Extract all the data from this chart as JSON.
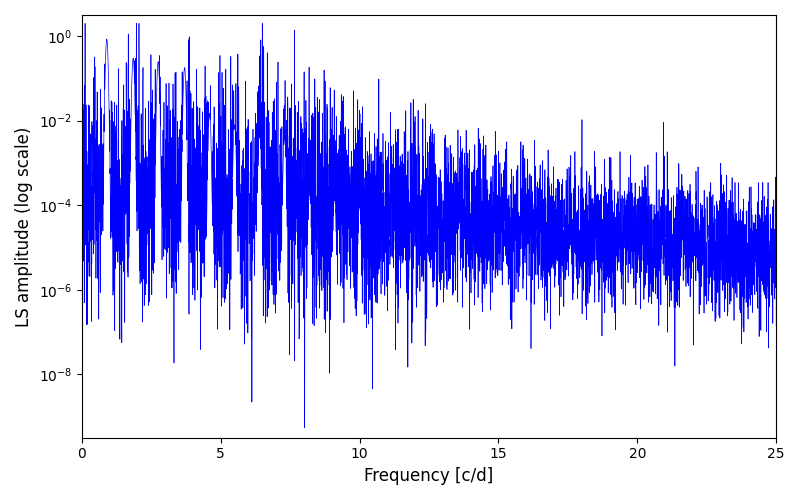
{
  "title": "",
  "xlabel": "Frequency [c/d]",
  "ylabel": "LS amplitude (log scale)",
  "line_color": "blue",
  "line_width": 0.5,
  "xlim": [
    0,
    25
  ],
  "ylim_log": [
    -9.5,
    0.5
  ],
  "freq_min": 0.01,
  "freq_max": 25.0,
  "n_points": 5000,
  "background_color": "#ffffff",
  "figsize": [
    8.0,
    5.0
  ],
  "dpi": 100,
  "seed": 12345,
  "log_base_intercept": -3.5,
  "log_base_slope": -0.065,
  "log_noise_sigma_low": 1.4,
  "log_noise_sigma_high": 0.8,
  "noise_transition_freq": 8.0,
  "spike_frequencies": [
    0.9,
    1.85,
    2.75,
    3.7,
    4.6,
    5.5,
    6.4,
    7.3,
    8.2,
    9.1,
    10.0
  ],
  "spike_amplitudes": [
    0.85,
    0.3,
    0.25,
    0.18,
    0.015,
    0.008,
    0.005,
    0.004,
    0.0002,
    0.00015,
    0.0001
  ],
  "spike_widths": [
    0.03,
    0.03,
    0.03,
    0.03,
    0.03,
    0.03,
    0.03,
    0.03,
    0.03,
    0.03,
    0.03
  ]
}
